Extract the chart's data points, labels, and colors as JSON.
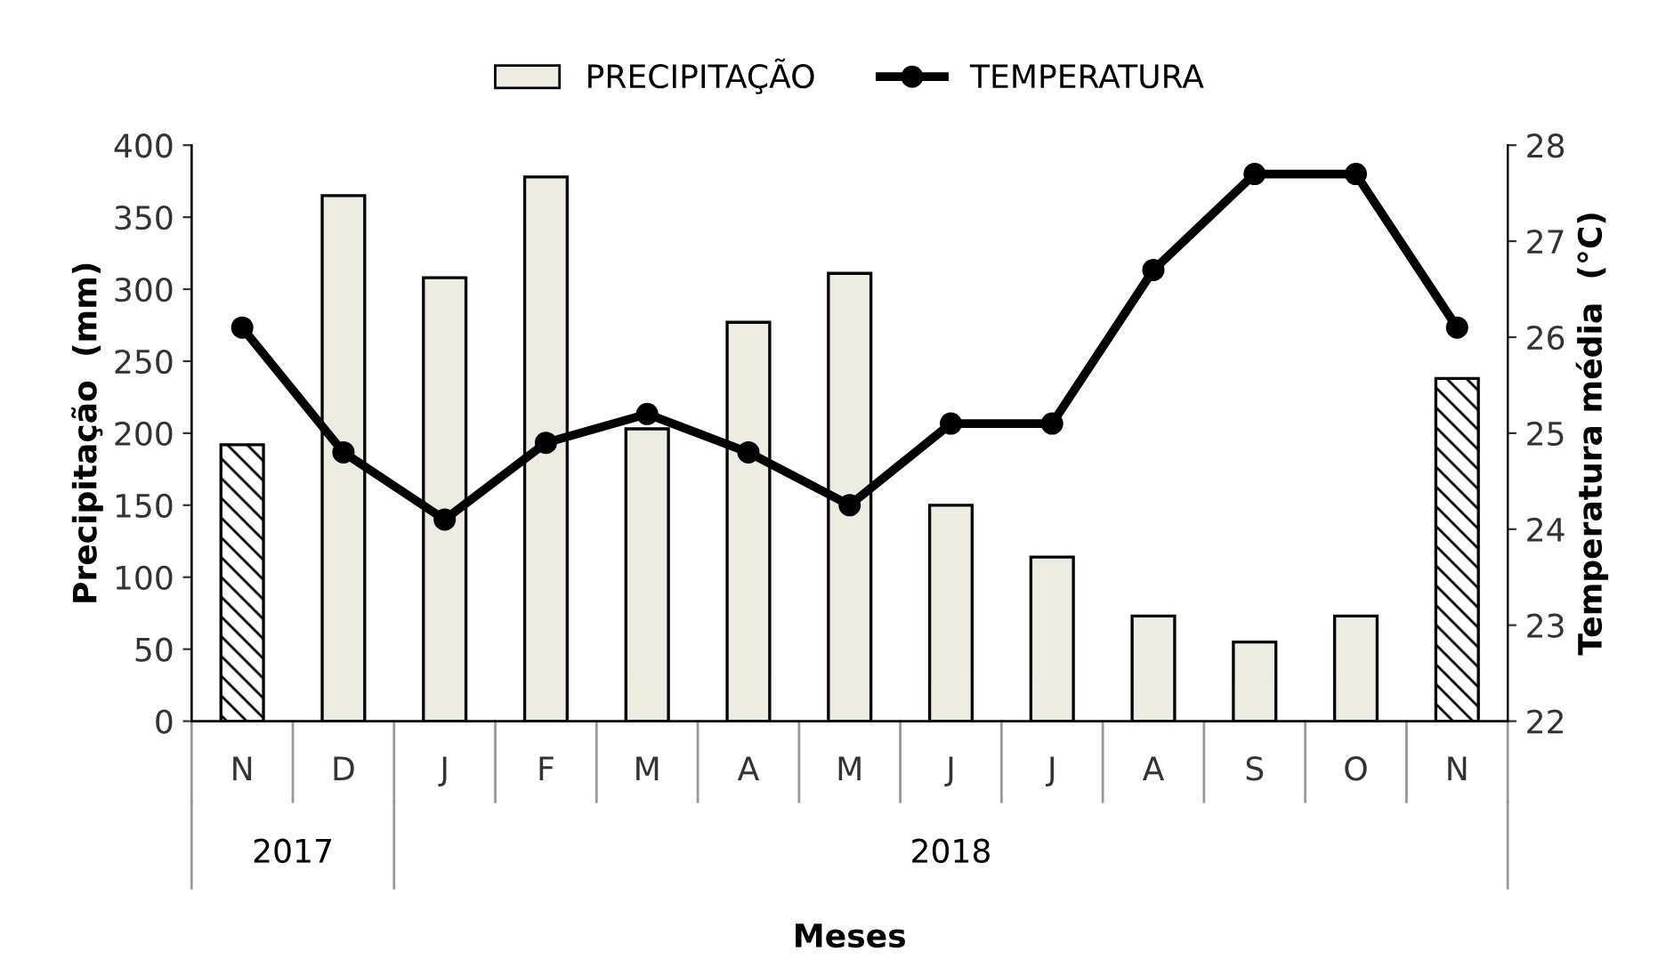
{
  "chart_data": {
    "type": "bar",
    "xlabel": "Meses",
    "ylabel": "Precipitação  (mm)",
    "y2label": "Temperatura média  (°C)",
    "categories": [
      "N",
      "D",
      "J",
      "F",
      "M",
      "A",
      "M",
      "J",
      "J",
      "A",
      "S",
      "O",
      "N"
    ],
    "series": [
      {
        "name": "PRECIPITAÇÃO",
        "color": "#eeebe0",
        "colors": [
          "#000000",
          "#eeebe0",
          "#eeebe0",
          "#eeebe0",
          "#eeebe0",
          "#eeebe0",
          "#eeebe0",
          "#eeebe0",
          "#eeebe0",
          "#eeebe0",
          "#eeebe0",
          "#eeebe0",
          "#000000"
        ],
        "values": [
          192,
          365,
          308,
          378,
          203,
          277,
          311,
          150,
          114,
          73,
          55,
          73,
          238
        ]
      },
      {
        "name": "TEMPERATURA",
        "type": "line",
        "axis": "y2",
        "color": "#000000",
        "marker": "circle",
        "values": [
          26.1,
          24.8,
          24.1,
          24.9,
          25.2,
          24.8,
          24.25,
          25.1,
          25.1,
          26.7,
          27.7,
          27.7,
          26.1
        ]
      }
    ],
    "ylim": [
      0,
      400
    ],
    "yticks": [
      0,
      50,
      100,
      150,
      200,
      250,
      300,
      350,
      400
    ],
    "y2lim": [
      22,
      28
    ],
    "y2ticks": [
      22,
      23,
      24,
      25,
      26,
      27,
      28
    ],
    "annotations": [
      "2017",
      "2018"
    ],
    "grid": false,
    "legend": "top"
  }
}
